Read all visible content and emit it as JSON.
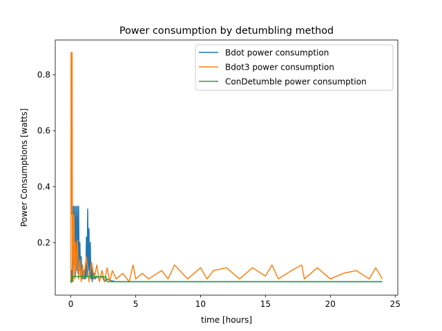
{
  "chart_data": {
    "type": "line",
    "title": "Power consumption by detumbling method",
    "xlabel": "time [hours]",
    "ylabel": "Power Consumptions [watts]",
    "xlim": [
      -1.2,
      25.2
    ],
    "ylim": [
      0.012,
      0.925
    ],
    "xticks": [
      0,
      5,
      10,
      15,
      20,
      25
    ],
    "yticks": [
      0.2,
      0.4,
      0.6,
      0.8
    ],
    "grid": false,
    "legend_position": "top-right",
    "series": [
      {
        "name": "Bdot power consumption",
        "color": "#1f77b4",
        "x": [
          0.0,
          0.05,
          0.1,
          0.15,
          0.2,
          0.25,
          0.3,
          0.35,
          0.4,
          0.45,
          0.5,
          0.55,
          0.6,
          0.65,
          0.7,
          0.75,
          0.8,
          0.85,
          0.9,
          0.95,
          1.0,
          1.05,
          1.1,
          1.15,
          1.2,
          1.25,
          1.3,
          1.35,
          1.4,
          1.45,
          1.5,
          1.55,
          1.6,
          1.65,
          1.7,
          1.75,
          1.8,
          1.9,
          2.0,
          2.2,
          2.4,
          2.6,
          2.8,
          3.0,
          3.5,
          4.0,
          6.0,
          8.0,
          10.0,
          12.0,
          14.0,
          16.0,
          18.0,
          20.0,
          22.0,
          24.0
        ],
        "values": [
          0.06,
          0.1,
          0.07,
          0.25,
          0.33,
          0.12,
          0.33,
          0.08,
          0.33,
          0.1,
          0.33,
          0.09,
          0.33,
          0.1,
          0.2,
          0.08,
          0.15,
          0.07,
          0.12,
          0.07,
          0.1,
          0.07,
          0.11,
          0.07,
          0.22,
          0.08,
          0.32,
          0.1,
          0.25,
          0.08,
          0.2,
          0.07,
          0.12,
          0.06,
          0.1,
          0.07,
          0.09,
          0.07,
          0.08,
          0.07,
          0.08,
          0.06,
          0.07,
          0.065,
          0.06,
          0.06,
          0.06,
          0.06,
          0.06,
          0.06,
          0.06,
          0.06,
          0.06,
          0.06,
          0.06,
          0.06
        ]
      },
      {
        "name": "Bdot3 power consumption",
        "color": "#ff7f0e",
        "x": [
          0.0,
          0.02,
          0.04,
          0.06,
          0.08,
          0.1,
          0.12,
          0.14,
          0.16,
          0.18,
          0.2,
          0.25,
          0.3,
          0.35,
          0.4,
          0.5,
          0.6,
          0.7,
          0.8,
          0.9,
          1.0,
          1.2,
          1.4,
          1.6,
          1.8,
          2.0,
          2.2,
          2.4,
          2.6,
          2.8,
          3.0,
          3.2,
          3.5,
          4.0,
          4.5,
          4.8,
          5.0,
          5.5,
          6.0,
          7.0,
          7.5,
          8.0,
          9.0,
          10.0,
          10.5,
          11.0,
          12.0,
          13.0,
          14.0,
          15.0,
          15.5,
          16.0,
          17.0,
          17.8,
          18.0,
          19.0,
          20.0,
          21.0,
          22.0,
          23.0,
          23.5,
          24.0
        ],
        "values": [
          0.06,
          0.88,
          0.3,
          0.88,
          0.5,
          0.88,
          0.2,
          0.1,
          0.3,
          0.06,
          0.15,
          0.3,
          0.07,
          0.2,
          0.1,
          0.21,
          0.07,
          0.14,
          0.06,
          0.12,
          0.07,
          0.15,
          0.06,
          0.13,
          0.07,
          0.12,
          0.06,
          0.1,
          0.06,
          0.11,
          0.06,
          0.1,
          0.07,
          0.09,
          0.06,
          0.12,
          0.07,
          0.09,
          0.07,
          0.1,
          0.07,
          0.12,
          0.07,
          0.11,
          0.07,
          0.1,
          0.11,
          0.07,
          0.11,
          0.08,
          0.12,
          0.07,
          0.1,
          0.12,
          0.07,
          0.11,
          0.07,
          0.09,
          0.1,
          0.07,
          0.11,
          0.07
        ]
      },
      {
        "name": "ConDetumble power consumption",
        "color": "#2ca02c",
        "x": [
          0.0,
          0.05,
          0.1,
          0.15,
          0.2,
          0.5,
          1.0,
          1.5,
          2.0,
          2.5,
          2.7,
          2.8,
          3.0,
          3.5,
          4.0,
          6.0,
          8.0,
          10.0,
          12.0,
          14.0,
          16.0,
          18.0,
          20.0,
          22.0,
          24.0
        ],
        "values": [
          0.055,
          0.07,
          0.06,
          0.078,
          0.078,
          0.078,
          0.078,
          0.078,
          0.078,
          0.078,
          0.078,
          0.06,
          0.06,
          0.06,
          0.06,
          0.06,
          0.06,
          0.06,
          0.06,
          0.06,
          0.06,
          0.06,
          0.06,
          0.06,
          0.06
        ]
      }
    ]
  }
}
